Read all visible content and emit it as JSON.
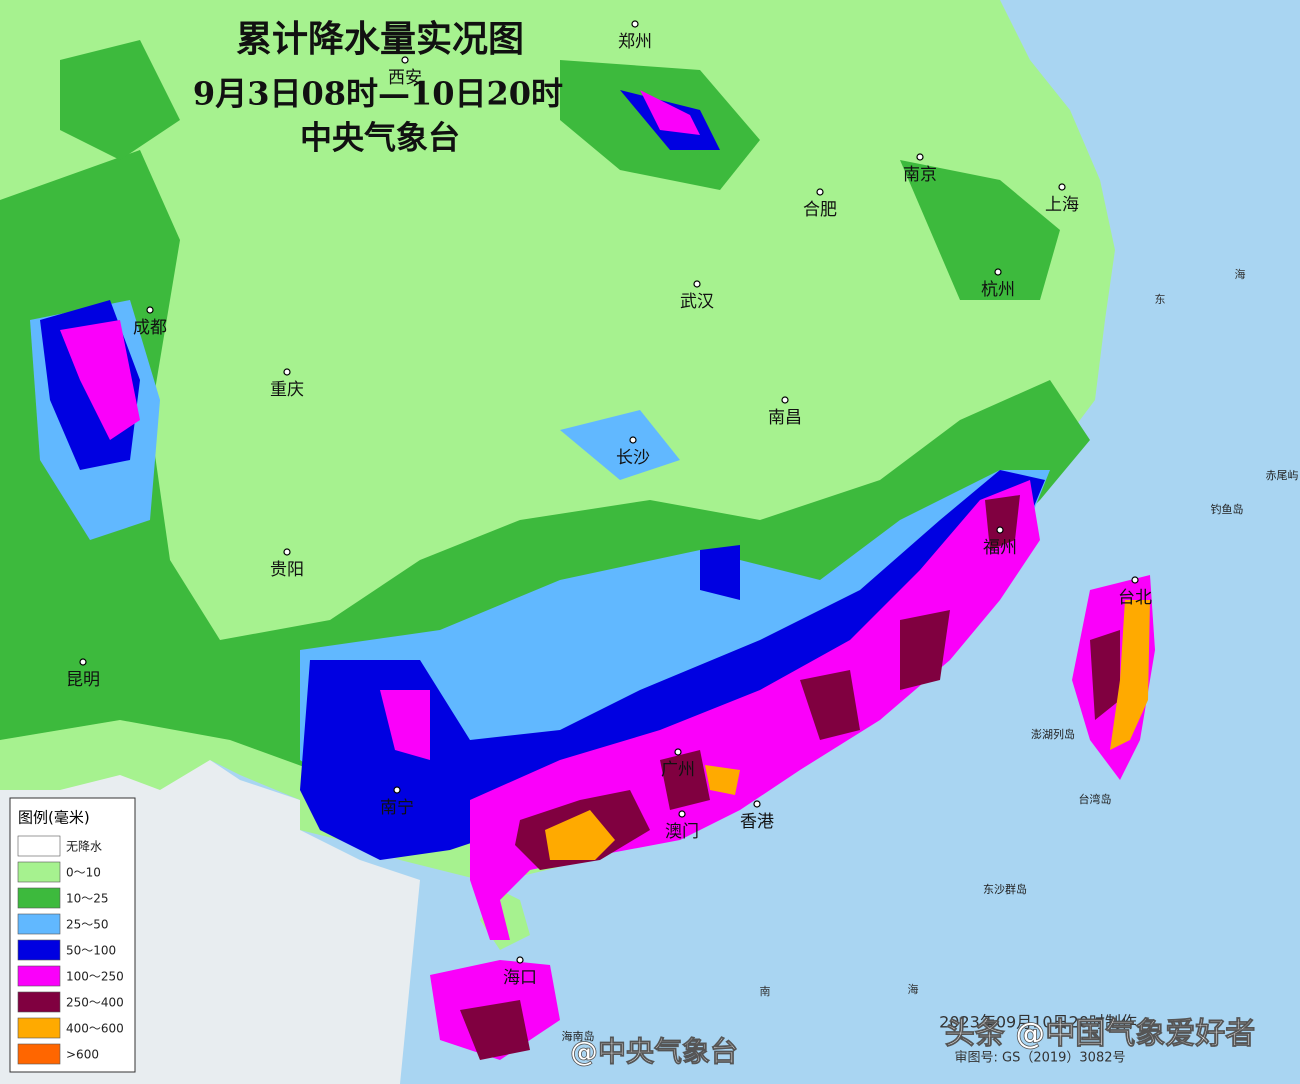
{
  "title": {
    "main": "累计降水量实况图",
    "period": "9月3日08时—10日20时",
    "agency": "中央气象台"
  },
  "cities": [
    "郑州",
    "西安",
    "南京",
    "合肥",
    "上海",
    "杭州",
    "武汉",
    "成都",
    "重庆",
    "长沙",
    "南昌",
    "福州",
    "台北",
    "贵阳",
    "昆明",
    "南宁",
    "广州",
    "澳门",
    "香港",
    "海口"
  ],
  "places": [
    "钓鱼岛",
    "赤尾屿",
    "澎湖列岛",
    "台湾岛",
    "东沙群岛",
    "海南岛"
  ],
  "sea_labels": [
    "东",
    "海",
    "南",
    "海"
  ],
  "legend": {
    "title": "图例(毫米)",
    "items": [
      {
        "label": "无降水",
        "color": "#ffffff"
      },
      {
        "label": "0～10",
        "color": "#a6f28f"
      },
      {
        "label": "10～25",
        "color": "#3dba3d"
      },
      {
        "label": "25～50",
        "color": "#61b8ff"
      },
      {
        "label": "50～100",
        "color": "#0000e1"
      },
      {
        "label": "100～250",
        "color": "#fa00fa"
      },
      {
        "label": "250～400",
        "color": "#800040"
      },
      {
        "label": "400～600",
        "color": "#ffaa00"
      },
      {
        "label": ">600",
        "color": "#ff6600"
      }
    ]
  },
  "watermarks": {
    "weibo": "@中央气象台",
    "toutiao": "头条 @中国气象爱好者",
    "made": "2023年09月10日20时制作",
    "review": "审图号: GS（2019）3082号"
  }
}
